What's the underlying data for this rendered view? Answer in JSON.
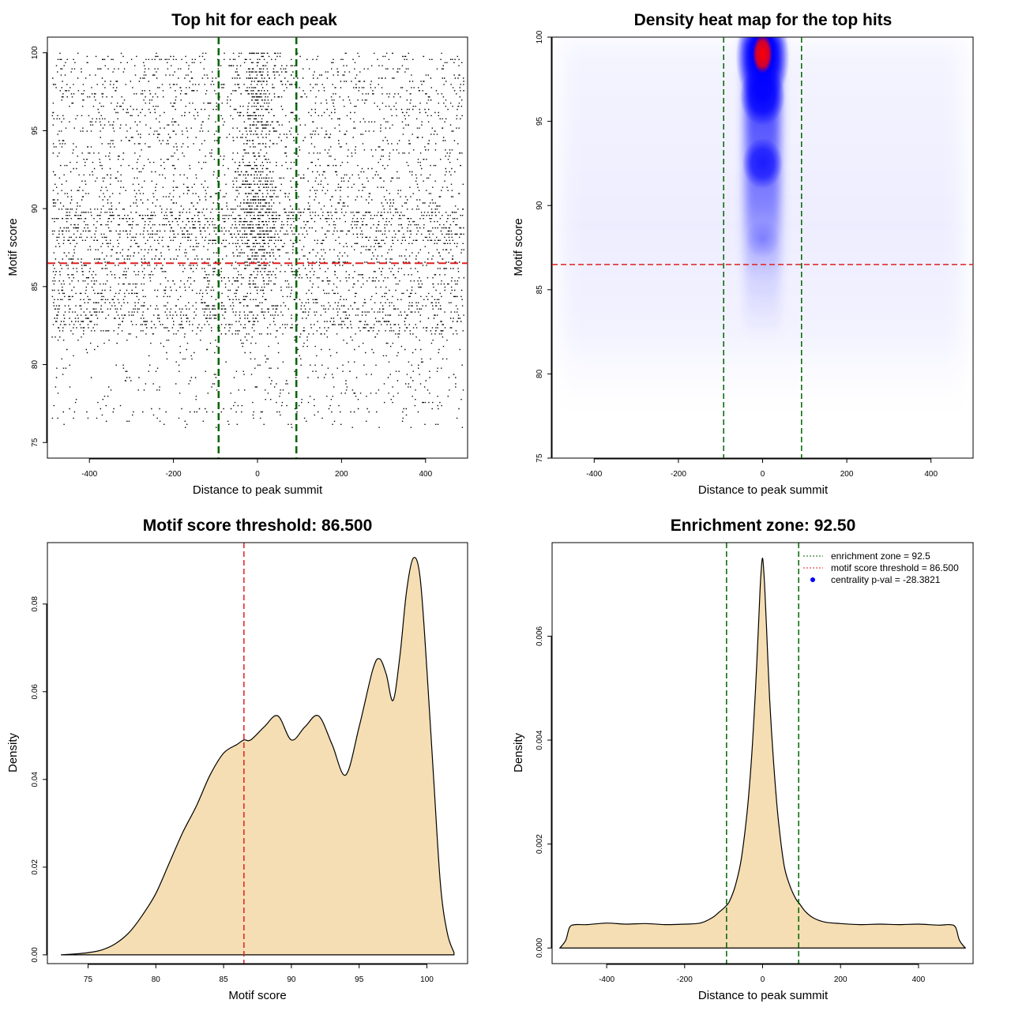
{
  "colors": {
    "enrichment_line": "#006400",
    "threshold_line": "#e02020",
    "density_fill": "#f5deb3",
    "scatter_point": "#000000",
    "centrality_dot": "#0000ff",
    "heat_low": "#ffffff",
    "heat_mid": "#0000ff",
    "heat_high": "#ff0000"
  },
  "chart_data": [
    {
      "id": "scatter",
      "type": "scatter",
      "title": "Top hit for each peak",
      "xlabel": "Distance to peak summit",
      "ylabel": "Motif score",
      "xlim": [
        -500,
        500
      ],
      "ylim": [
        74,
        101
      ],
      "xticks": [
        "-400",
        "-200",
        "0",
        "200",
        "400"
      ],
      "yticks": [
        "75",
        "80",
        "85",
        "90",
        "95",
        "100"
      ],
      "vlines": [
        -92.5,
        92.5
      ],
      "hline": 86.5,
      "n_points_approx": 7000,
      "central_zone_width": 92.5,
      "score_distribution_peaks": [
        89,
        92,
        96,
        99
      ],
      "note": "dense band of points centered at 0 for scores above 86.5; uniform background from -490 to 490 for scores 76-100"
    },
    {
      "id": "heatmap",
      "type": "heatmap",
      "title": "Density heat map for the top hits",
      "xlabel": "Distance to peak summit",
      "ylabel": "Motif score",
      "xlim": [
        -500,
        500
      ],
      "ylim": [
        75,
        100
      ],
      "xticks": [
        "-400",
        "-200",
        "0",
        "200",
        "400"
      ],
      "yticks": [
        "75",
        "80",
        "85",
        "90",
        "95",
        "100"
      ],
      "vlines": [
        -92.5,
        92.5
      ],
      "hline": 86.5,
      "hotspots": [
        {
          "x": 0,
          "y": 99,
          "intensity": 1.0
        },
        {
          "x": 0,
          "y": 96.5,
          "intensity": 0.75
        },
        {
          "x": 0,
          "y": 92.5,
          "intensity": 0.55
        },
        {
          "x": 0,
          "y": 88,
          "intensity": 0.25
        }
      ]
    },
    {
      "id": "score_density",
      "type": "area",
      "title": "Motif score threshold: 86.500",
      "xlabel": "Motif score",
      "ylabel": "Density",
      "xlim": [
        72,
        103
      ],
      "ylim": [
        -0.002,
        0.094
      ],
      "xticks": [
        75,
        80,
        85,
        90,
        95,
        100
      ],
      "yticks": [
        "0.00",
        "0.02",
        "0.04",
        "0.06",
        "0.08"
      ],
      "x": [
        73,
        74,
        75,
        76,
        77,
        78,
        79,
        80,
        81,
        82,
        83,
        84,
        85,
        86,
        86.5,
        87,
        88,
        89,
        90,
        91,
        92,
        93,
        94,
        95,
        96,
        96.5,
        97,
        97.5,
        98,
        98.5,
        99,
        99.5,
        100,
        100.5,
        101,
        101.5,
        102
      ],
      "y": [
        0.0,
        0.0002,
        0.0005,
        0.0011,
        0.0025,
        0.005,
        0.009,
        0.014,
        0.021,
        0.028,
        0.034,
        0.041,
        0.046,
        0.048,
        0.049,
        0.049,
        0.052,
        0.0545,
        0.049,
        0.052,
        0.0545,
        0.048,
        0.041,
        0.052,
        0.065,
        0.0675,
        0.064,
        0.058,
        0.068,
        0.083,
        0.0905,
        0.086,
        0.065,
        0.04,
        0.016,
        0.005,
        0.0005
      ],
      "vline": 86.5
    },
    {
      "id": "distance_density",
      "type": "area",
      "title": "Enrichment zone: 92.50",
      "xlabel": "Distance to peak summit",
      "ylabel": "Density",
      "xlim": [
        -540,
        540
      ],
      "ylim": [
        -0.0003,
        0.0078
      ],
      "xticks": [
        "-400",
        "-200",
        "0",
        "200",
        "400"
      ],
      "yticks": [
        "0.000",
        "0.002",
        "0.004",
        "0.006"
      ],
      "x": [
        -520,
        -505,
        -495,
        -480,
        -450,
        -400,
        -350,
        -300,
        -250,
        -200,
        -160,
        -130,
        -110,
        -95,
        -85,
        -70,
        -55,
        -40,
        -28,
        -18,
        -10,
        -5,
        0,
        5,
        10,
        18,
        28,
        40,
        55,
        70,
        85,
        95,
        110,
        130,
        160,
        200,
        250,
        300,
        350,
        400,
        450,
        480,
        495,
        505,
        520
      ],
      "y": [
        0.0,
        0.00015,
        0.0004,
        0.00045,
        0.00045,
        0.00048,
        0.00046,
        0.00047,
        0.00045,
        0.00046,
        0.00048,
        0.00058,
        0.0007,
        0.0008,
        0.0009,
        0.0012,
        0.0017,
        0.0026,
        0.0037,
        0.005,
        0.0063,
        0.0071,
        0.0075,
        0.007,
        0.0062,
        0.0048,
        0.0036,
        0.0025,
        0.0016,
        0.0012,
        0.00095,
        0.00085,
        0.0007,
        0.00058,
        0.0005,
        0.00047,
        0.00045,
        0.00046,
        0.00045,
        0.00046,
        0.00044,
        0.00045,
        0.0004,
        0.00015,
        0.0
      ],
      "vlines": [
        -92.5,
        92.5
      ],
      "legend": {
        "position": "top-right",
        "entries": [
          {
            "label": "enrichment zone = 92.5",
            "kind": "dotted-line",
            "color": "#006400"
          },
          {
            "label": "motif score threshold = 86.500",
            "kind": "dotted-line",
            "color": "#e02020"
          },
          {
            "label": "centrality p-val = -28.3821",
            "kind": "dot",
            "color": "#0000ff"
          }
        ]
      }
    }
  ]
}
